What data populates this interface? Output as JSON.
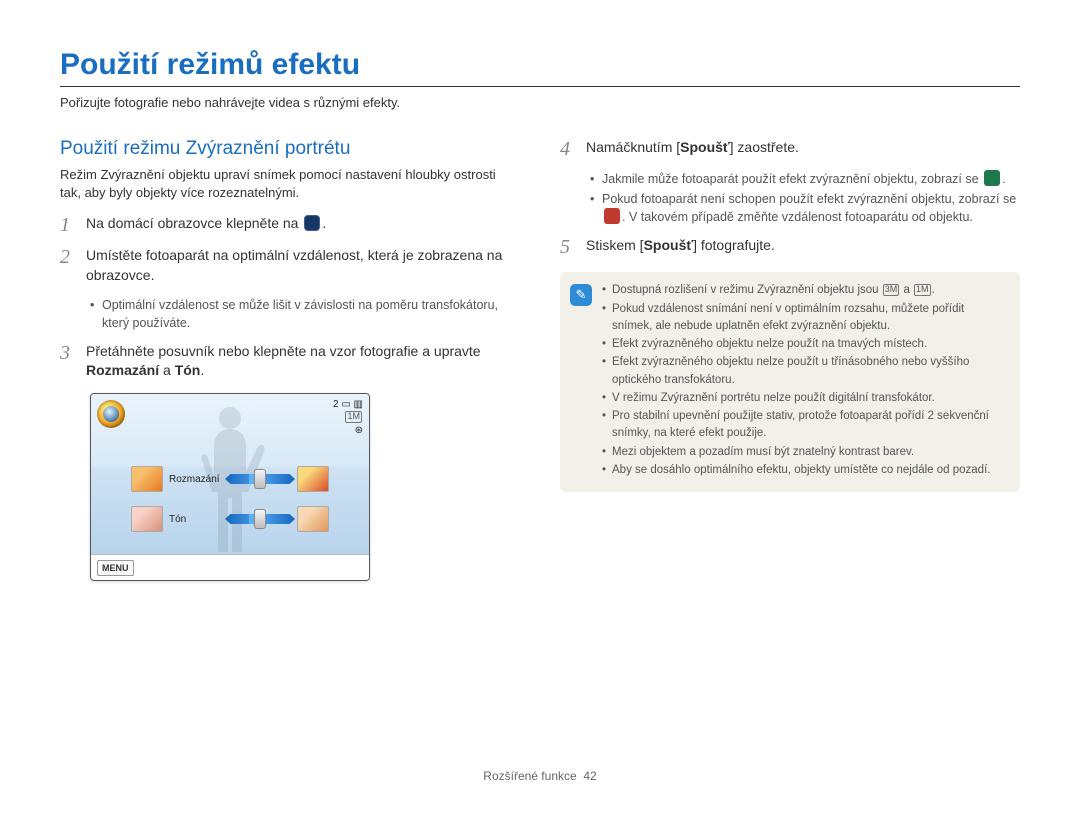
{
  "title": "Použití režimů efektu",
  "intro": "Pořizujte fotografie nebo nahrávejte videa s různými efekty.",
  "subheading": "Použití režimu Zvýraznění portrétu",
  "subdesc": "Režim Zvýraznění objektu upraví snímek pomocí nastavení hloubky ostrosti tak, aby byly objekty více rozeznatelnými.",
  "steps_left": [
    {
      "num": "1",
      "text": "Na domácí obrazovce klepněte na ",
      "icon_after": true,
      "icon_color": "#163766",
      "trail": "."
    },
    {
      "num": "2",
      "text": "Umístěte fotoaparát na optimální vzdálenost, která je zobrazena na obrazovce.",
      "sub": [
        "Optimální vzdálenost se může lišit v závislosti na poměru transfokátoru, který používáte."
      ]
    },
    {
      "num": "3",
      "html": "Přetáhněte posuvník nebo klepněte na vzor fotografie a upravte <b>Rozmazání</b> a <b>Tón</b>."
    }
  ],
  "steps_right": [
    {
      "num": "4",
      "html": "Namáčknutím [<b>Spoušť</b>] zaostřete.",
      "sub_rich": true
    },
    {
      "num": "5",
      "html": "Stiskem [<b>Spoušť</b>] fotografujte."
    }
  ],
  "step4_sub": {
    "a_pre": "Jakmile může fotoaparát použít efekt zvýraznění objektu, zobrazí se ",
    "a_icon_color": "#1f7a4b",
    "a_post": ".",
    "b_pre": "Pokud fotoaparát není schopen použít efekt zvýraznění objektu, zobrazí se ",
    "b_icon_color": "#c23a2e",
    "b_post": ". V takovém případě změňte vzdálenost fotoaparátu od objektu."
  },
  "notes": [
    {
      "pre": "Dostupná rozlišení v režimu Zvýraznění objektu jsou ",
      "res1": "3M",
      "mid": " a ",
      "res2": "1M",
      "post": "."
    },
    {
      "text": "Pokud vzdálenost snímání není v optimálním rozsahu, můžete pořídit snímek, ale nebude uplatněn efekt zvýraznění objektu."
    },
    {
      "text": "Efekt zvýrazněného objektu nelze použít na tmavých místech."
    },
    {
      "text": "Efekt zvýrazněného objektu nelze použít u třínásobného nebo vyššího optického transfokátoru."
    },
    {
      "text": "V režimu Zvýraznění portrétu nelze použít digitální transfokátor."
    },
    {
      "text": "Pro stabilní upevnění použijte stativ, protože fotoaparát pořídí 2 sekvenční snímky, na které efekt použije."
    },
    {
      "text": "Mezi objektem a pozadím musí být znatelný kontrast barev."
    },
    {
      "text": "Aby se dosáhlo optimálního efektu, objekty umístěte co nejdále od pozadí."
    }
  ],
  "lcd": {
    "label_blur": "Rozmazání",
    "label_tone": "Tón",
    "menu": "MENU",
    "indicator_num": "2",
    "res_icon": "1M",
    "thumb_colors": {
      "blur_left": "linear-gradient(135deg,#f9c06c 30%,#e57a1f)",
      "blur_right": "linear-gradient(135deg,#f9d97a 30%,#d94a2a)",
      "tone_left": "linear-gradient(135deg,#f7d2c8 30%,#d99178)",
      "tone_right": "linear-gradient(135deg,#f7d9b5 30%,#e09858)"
    }
  },
  "footer": {
    "label": "Rozšířené funkce",
    "page": "42"
  },
  "colors": {
    "title": "#1a6ebf",
    "note_bg": "#f3efe9",
    "note_icon": "#2e8bd6"
  }
}
